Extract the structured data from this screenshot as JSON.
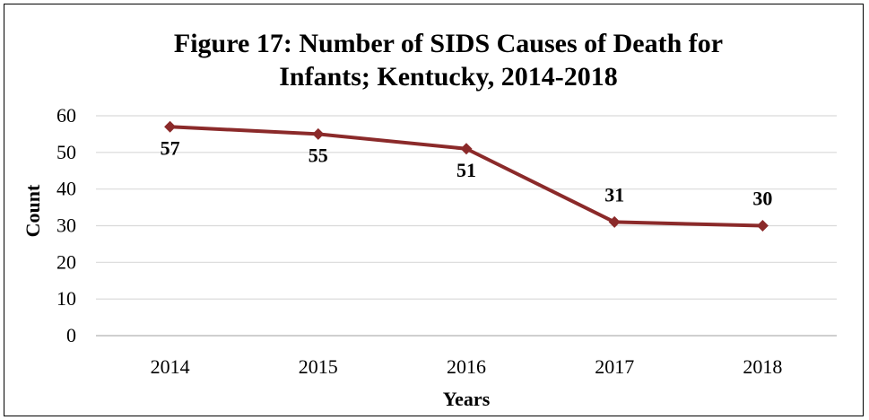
{
  "chart_data": {
    "type": "line",
    "title_lines": [
      "Figure 17: Number of SIDS Causes of Death for",
      "Infants; Kentucky, 2014-2018"
    ],
    "xlabel": "Years",
    "ylabel": "Count",
    "categories": [
      "2014",
      "2015",
      "2016",
      "2017",
      "2018"
    ],
    "values": [
      57,
      55,
      51,
      31,
      30
    ],
    "data_labels": [
      "57",
      "55",
      "51",
      "31",
      "30"
    ],
    "ylim": [
      0,
      60
    ],
    "yticks": [
      "0",
      "10",
      "20",
      "30",
      "40",
      "50",
      "60"
    ],
    "grid": true,
    "legend": "none",
    "series_color": "#8B2A2A",
    "grid_color": "#D9D9D9"
  }
}
